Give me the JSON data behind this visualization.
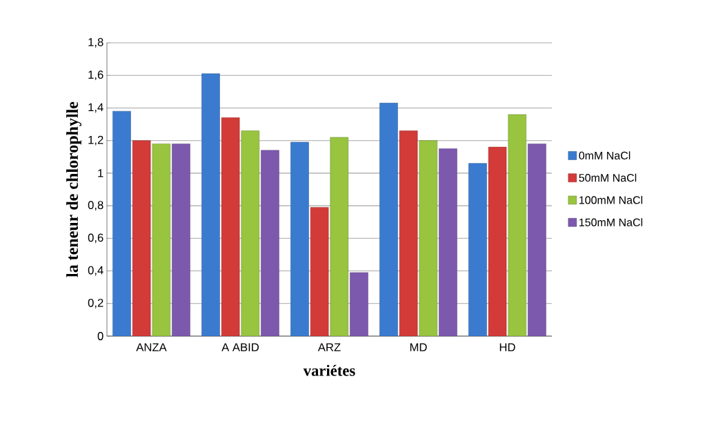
{
  "chart_data": {
    "type": "bar",
    "xlabel": "variétes",
    "ylabel": "la teneur de chlorophylle",
    "categories": [
      "ANZA",
      "A ABID",
      "ARZ",
      "MD",
      "HD"
    ],
    "series": [
      {
        "name": "0mM NaCl",
        "color": "#3a7bd0",
        "values": [
          1.38,
          1.61,
          1.19,
          1.43,
          1.06
        ]
      },
      {
        "name": "50mM NaCl",
        "color": "#d23b38",
        "values": [
          1.2,
          1.34,
          0.79,
          1.26,
          1.16
        ]
      },
      {
        "name": "100mM NaCl",
        "color": "#98c440",
        "values": [
          1.18,
          1.26,
          1.22,
          1.2,
          1.36
        ]
      },
      {
        "name": "150mM NaCl",
        "color": "#7d59ad",
        "values": [
          1.18,
          1.14,
          0.39,
          1.15,
          1.18
        ]
      }
    ],
    "ylim": [
      0,
      1.8
    ],
    "yticks": [
      0,
      {
        "value": 0.2,
        "label": "0,2"
      },
      {
        "value": 0.4,
        "label": "0,4"
      },
      {
        "value": 0.6,
        "label": "0,6"
      },
      {
        "value": 0.8,
        "label": "0,8"
      },
      1,
      {
        "value": 1.2,
        "label": "1,2"
      },
      {
        "value": 1.4,
        "label": "1,4"
      },
      {
        "value": 1.6,
        "label": "1,6"
      },
      {
        "value": 1.8,
        "label": "1,8"
      }
    ],
    "grid": "y",
    "legend": "right"
  }
}
